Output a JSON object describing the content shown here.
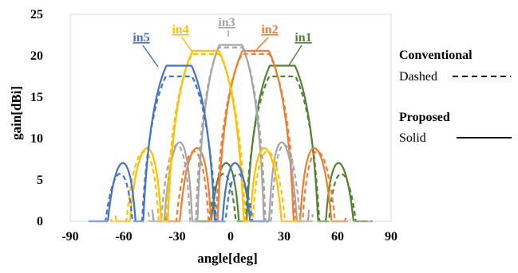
{
  "chart_data": {
    "type": "line",
    "xlabel": "angle[deg]",
    "ylabel": "gain[dBi]",
    "xlim": [
      -90,
      90
    ],
    "ylim": [
      0,
      25
    ],
    "xticks": [
      -90,
      -60,
      -30,
      0,
      30,
      60,
      90
    ],
    "yticks": [
      0,
      5,
      10,
      15,
      20,
      25
    ],
    "grid": false,
    "legend": {
      "conventional_title": "Conventional",
      "conventional_style": "Dashed",
      "proposed_title": "Proposed",
      "proposed_style": "Solid"
    },
    "series": [
      {
        "name": "in1",
        "color": "#548235",
        "center": 29,
        "proposed_peak": 18.8,
        "conventional_peak": 17.5,
        "null_halfwidth": 22
      },
      {
        "name": "in2",
        "color": "#ED7D31",
        "center": 14,
        "proposed_peak": 20.6,
        "conventional_peak": 20.2,
        "null_halfwidth": 23
      },
      {
        "name": "in3",
        "color": "#A5A5A5",
        "center": 0,
        "proposed_peak": 21.3,
        "conventional_peak": 21.0,
        "null_halfwidth": 20
      },
      {
        "name": "in4",
        "color": "#FFC000",
        "center": -14,
        "proposed_peak": 20.6,
        "conventional_peak": 20.2,
        "null_halfwidth": 23
      },
      {
        "name": "in5",
        "color": "#4472C4",
        "center": -29,
        "proposed_peak": 18.8,
        "conventional_peak": 17.5,
        "null_halfwidth": 22
      }
    ]
  }
}
